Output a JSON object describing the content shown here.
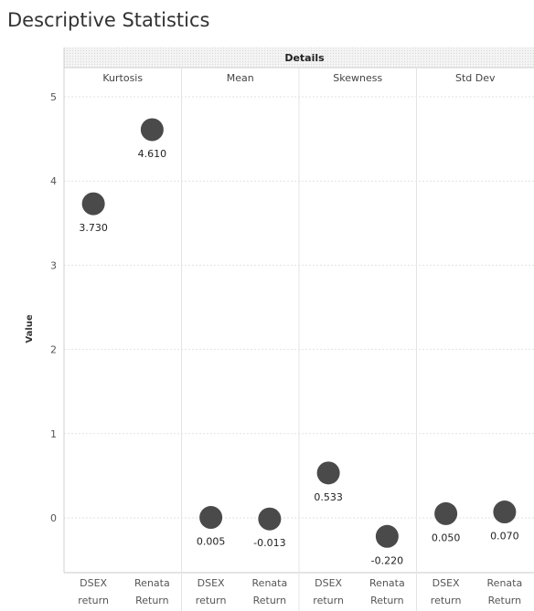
{
  "chart_data": {
    "type": "scatter",
    "title": "Descriptive Statistics",
    "header": "Details",
    "ylabel": "Value",
    "ylim": [
      -0.6,
      5.1
    ],
    "yticks": [
      0,
      1,
      2,
      3,
      4,
      5
    ],
    "grid": true,
    "legend": "none",
    "mark_color": "#4a4a4a",
    "panels": [
      {
        "name": "Kurtosis",
        "points": [
          {
            "category": [
              "DSEX",
              "return"
            ],
            "value": 3.73,
            "label": "3.730"
          },
          {
            "category": [
              "Renata",
              "Return"
            ],
            "value": 4.61,
            "label": "4.610"
          }
        ]
      },
      {
        "name": "Mean",
        "points": [
          {
            "category": [
              "DSEX",
              "return"
            ],
            "value": 0.005,
            "label": "0.005"
          },
          {
            "category": [
              "Renata",
              "Return"
            ],
            "value": -0.013,
            "label": "-0.013"
          }
        ]
      },
      {
        "name": "Skewness",
        "points": [
          {
            "category": [
              "DSEX",
              "return"
            ],
            "value": 0.533,
            "label": "0.533"
          },
          {
            "category": [
              "Renata",
              "Return"
            ],
            "value": -0.22,
            "label": "-0.220"
          }
        ]
      },
      {
        "name": "Std Dev",
        "points": [
          {
            "category": [
              "DSEX",
              "return"
            ],
            "value": 0.05,
            "label": "0.050"
          },
          {
            "category": [
              "Renata",
              "Return"
            ],
            "value": 0.07,
            "label": "0.070"
          }
        ]
      }
    ]
  }
}
